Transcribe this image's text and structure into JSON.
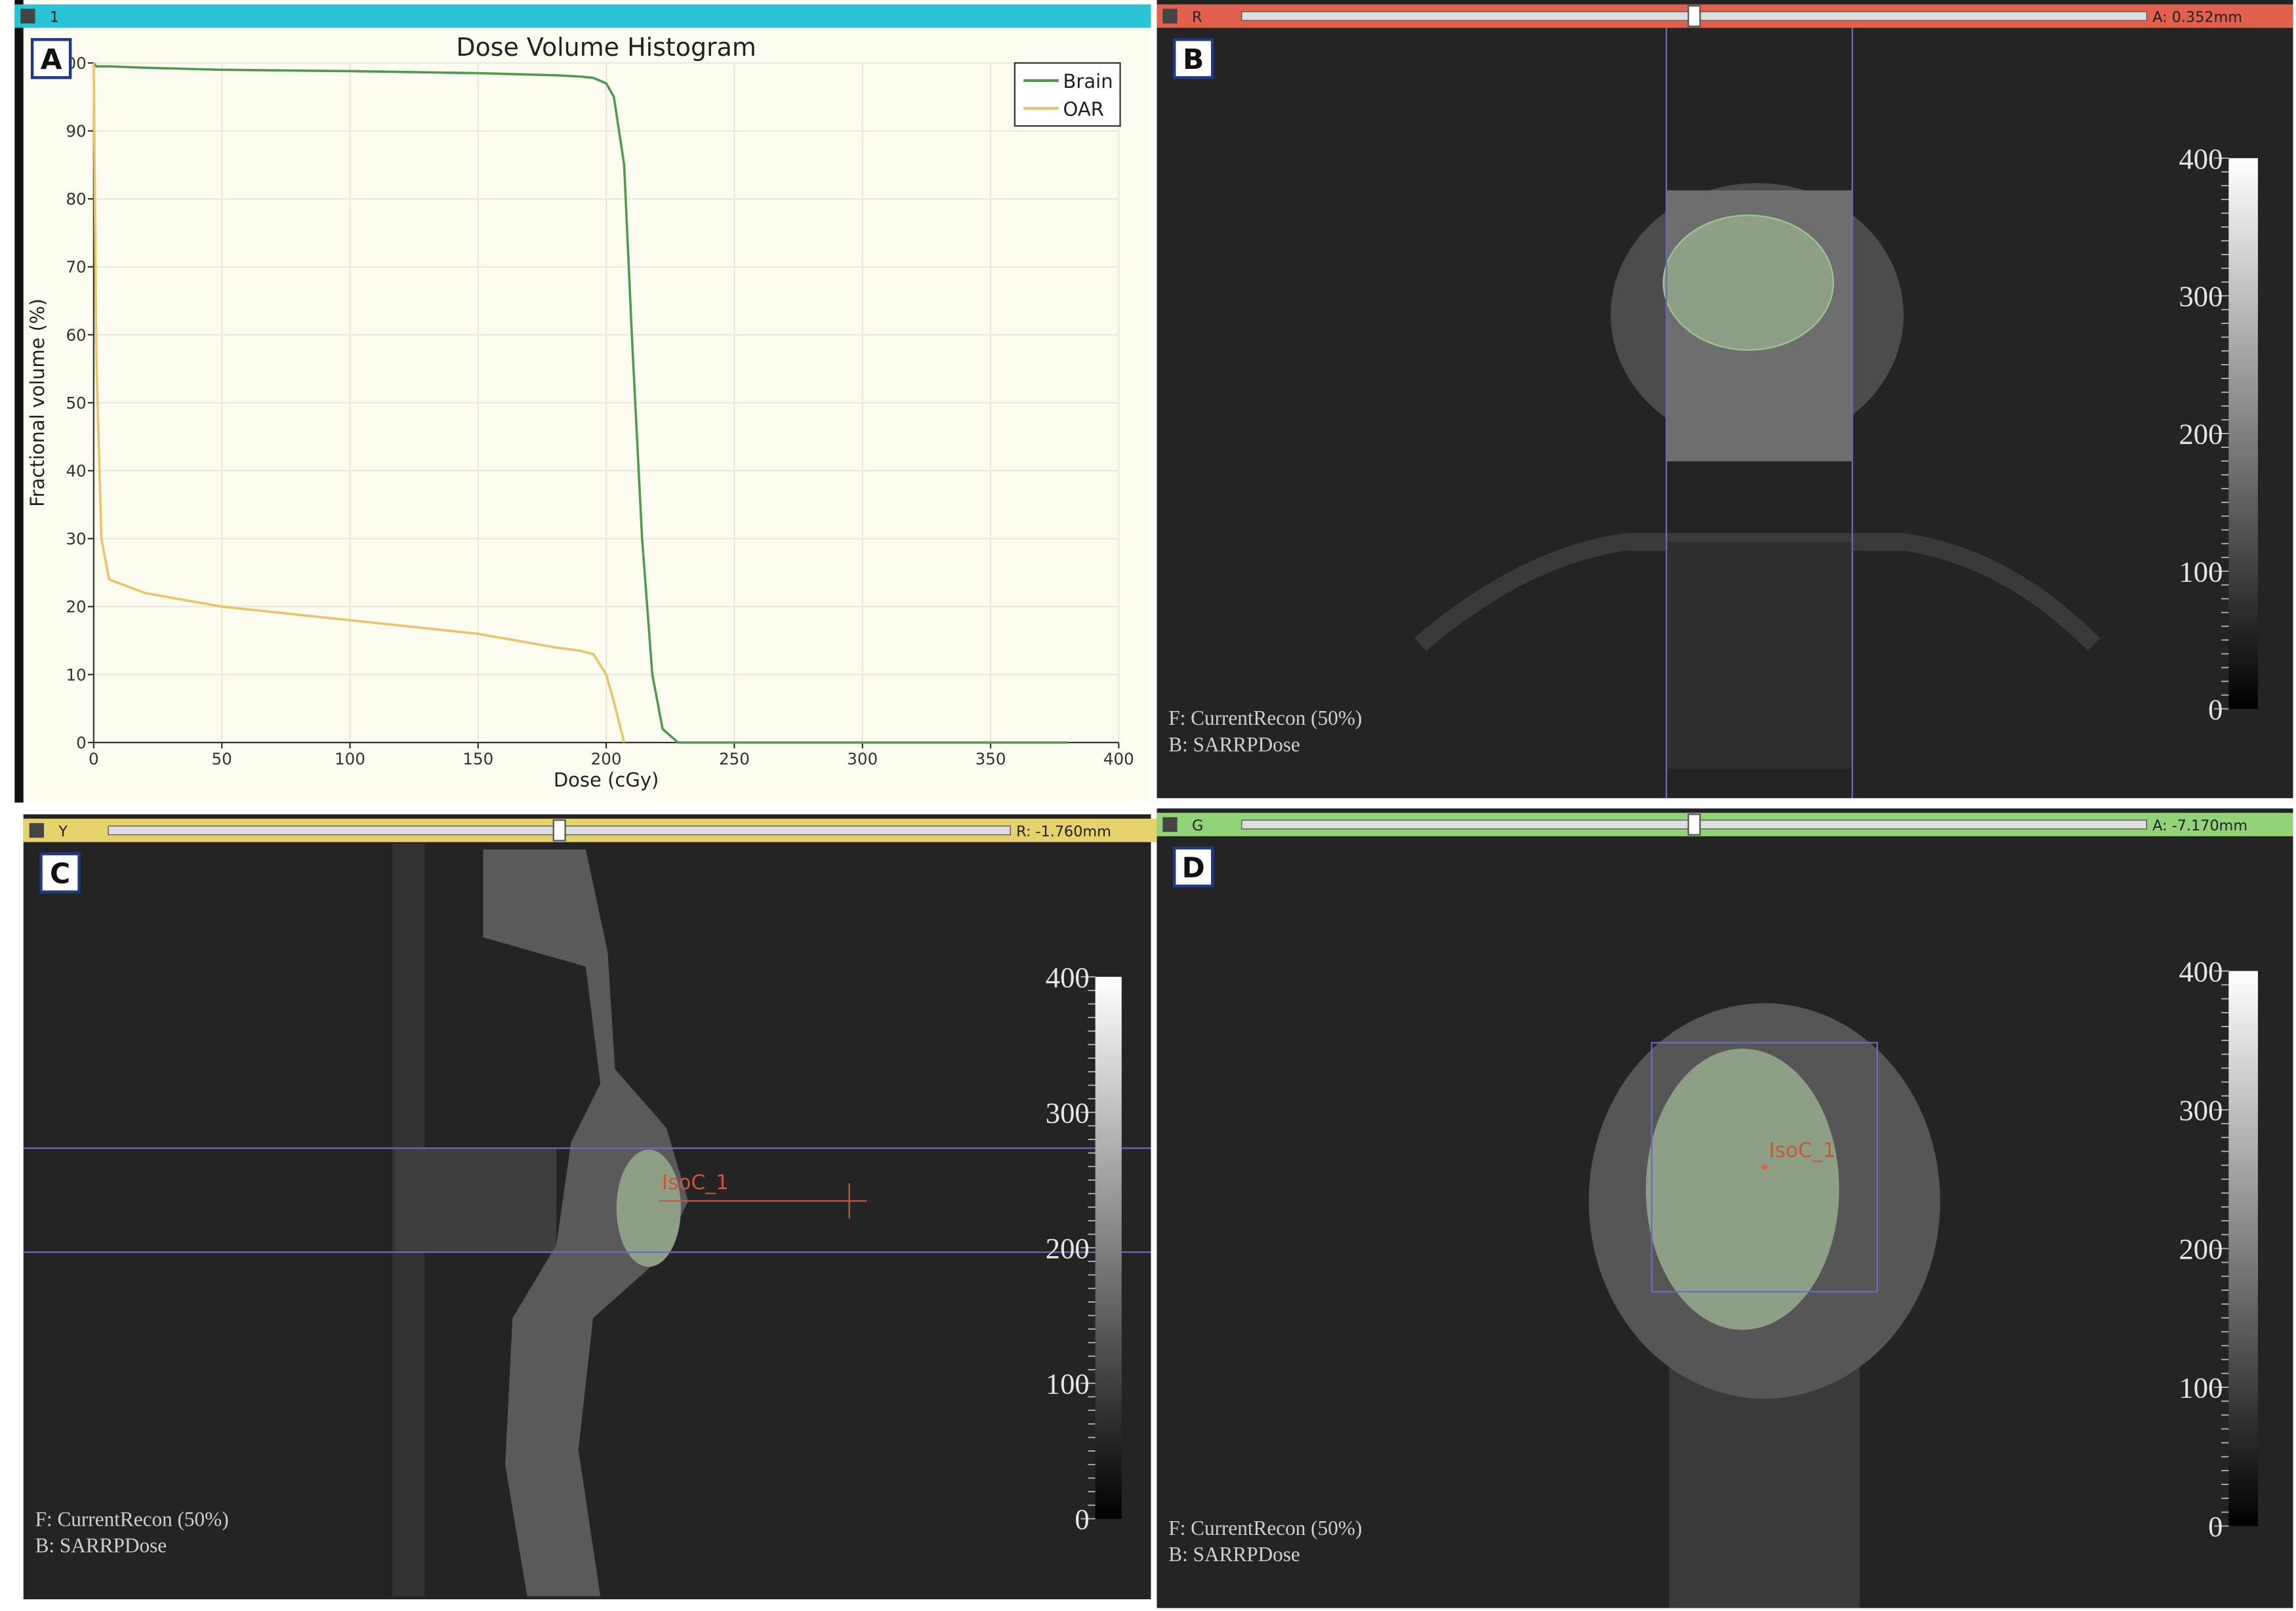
{
  "chart_data": {
    "type": "line",
    "title": "Dose Volume Histogram",
    "x_label": "Dose (cGy)",
    "y_label": "Fractional volume (%)",
    "x": [
      0,
      1,
      3,
      6,
      20,
      50,
      100,
      150,
      180,
      190,
      195,
      200,
      203,
      205,
      207,
      210,
      214,
      218,
      222,
      228,
      380
    ],
    "series": [
      {
        "name": "Brain",
        "color": "#4f9a4f",
        "values": [
          100,
          99.5,
          99.5,
          99.5,
          99.3,
          99,
          98.8,
          98.5,
          98.2,
          98,
          97.8,
          97,
          95,
          90,
          85,
          60,
          30,
          10,
          2,
          0,
          0
        ]
      },
      {
        "name": "OAR",
        "color": "#e9c468",
        "values": [
          100,
          57,
          30,
          24,
          22,
          20,
          18,
          16,
          14,
          13.5,
          13,
          10,
          6,
          3,
          0,
          null,
          null,
          null,
          null,
          null,
          null
        ]
      }
    ],
    "xlim": [
      0,
      400
    ],
    "ylim": [
      0,
      100
    ],
    "xticks": [
      0,
      50,
      100,
      150,
      200,
      250,
      300,
      350,
      400
    ],
    "yticks": [
      0,
      10,
      20,
      30,
      40,
      50,
      60,
      70,
      80,
      90,
      100
    ],
    "grid": true,
    "legend": "upper right"
  },
  "panels": [
    {
      "label": "A",
      "toolbar": "1"
    },
    {
      "label": "B",
      "toolbar": "R",
      "readout": "A: 0.352mm",
      "overlay": [
        "F: CurrentRecon (50%)",
        "B: SARRPDose"
      ],
      "colorbar": [
        400,
        300,
        200,
        100,
        0
      ]
    },
    {
      "label": "C",
      "toolbar": "Y",
      "readout": "R: -1.760mm",
      "overlay": [
        "F: CurrentRecon (50%)",
        "B: SARRPDose"
      ],
      "colorbar": [
        400,
        300,
        200,
        100,
        0
      ],
      "annotation": "IsoC_1"
    },
    {
      "label": "D",
      "toolbar": "G",
      "readout": "A: -7.170mm",
      "overlay": [
        "F: CurrentRecon (50%)",
        "B: SARRPDose"
      ],
      "colorbar": [
        400,
        300,
        200,
        100,
        0
      ],
      "annotation": "IsoC_1"
    }
  ]
}
